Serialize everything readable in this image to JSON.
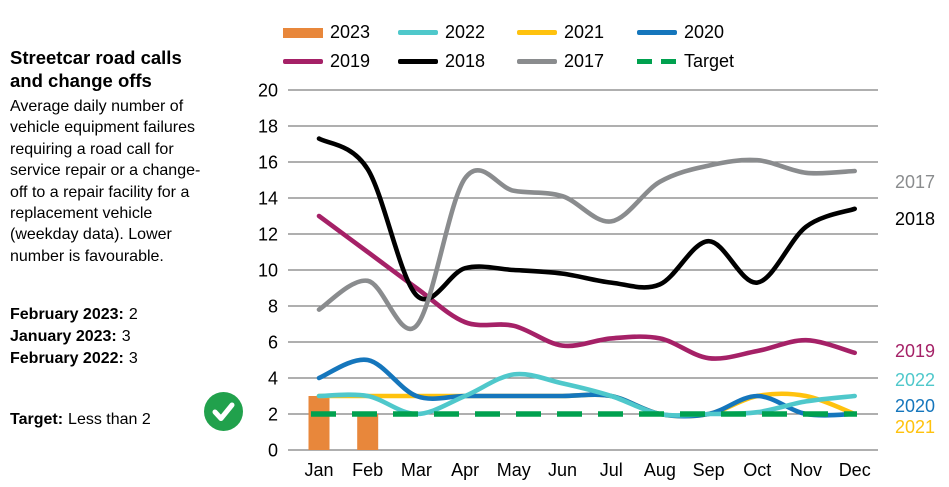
{
  "panel": {
    "title": "Streetcar road calls\nand change offs",
    "description": "Average daily number of\nvehicle equipment failures\nrequiring a road call for\nservice repair or a change-\noff to a repair facility for a\nreplacement vehicle\n(weekday data). Lower\nnumber is favourable."
  },
  "stats": [
    {
      "label": "February 2023:",
      "value": "2"
    },
    {
      "label": "January 2023:",
      "value": "3"
    },
    {
      "label": "February 2022:",
      "value": "3"
    }
  ],
  "target": {
    "label": "Target:",
    "value": "Less than 2",
    "status_icon": "check-circle-icon",
    "status_color": "#21A14C"
  },
  "legend": {
    "items": [
      {
        "label": "2023",
        "color": "#E8873B",
        "swatch": "bar"
      },
      {
        "label": "2022",
        "color": "#4FC8CB",
        "swatch": "line"
      },
      {
        "label": "2021",
        "color": "#FFC20E",
        "swatch": "line"
      },
      {
        "label": "2020",
        "color": "#1576BC",
        "swatch": "line"
      },
      {
        "label": "2019",
        "color": "#A52167",
        "swatch": "line"
      },
      {
        "label": "2018",
        "color": "#000000",
        "swatch": "line"
      },
      {
        "label": "2017",
        "color": "#8A8C8E",
        "swatch": "line"
      },
      {
        "label": "Target",
        "color": "#00A14F",
        "swatch": "dash"
      }
    ]
  },
  "chart_data": {
    "type": "line",
    "title": "Streetcar road calls and change offs",
    "categories": [
      "Jan",
      "Feb",
      "Mar",
      "Apr",
      "May",
      "Jun",
      "Jul",
      "Aug",
      "Sep",
      "Oct",
      "Nov",
      "Dec"
    ],
    "y_ticks": [
      0,
      2,
      4,
      6,
      8,
      10,
      12,
      14,
      16,
      18,
      20
    ],
    "ylim": [
      0,
      20
    ],
    "grid": true,
    "grid_color": "#7F7F7F",
    "series": [
      {
        "name": "2023",
        "type": "bar",
        "color": "#E8873B",
        "values": [
          3,
          2,
          null,
          null,
          null,
          null,
          null,
          null,
          null,
          null,
          null,
          null
        ]
      },
      {
        "name": "2019",
        "type": "line",
        "color": "#A52167",
        "values": [
          13,
          11,
          9,
          7.1,
          6.9,
          5.8,
          6.2,
          6.2,
          5.1,
          5.5,
          6.1,
          5.4
        ]
      },
      {
        "name": "2018",
        "type": "line",
        "color": "#000000",
        "values": [
          17.3,
          15.6,
          8.6,
          10.1,
          10,
          9.8,
          9.3,
          9.2,
          11.6,
          9.3,
          12.4,
          13.4
        ]
      },
      {
        "name": "2017",
        "type": "line",
        "color": "#8A8C8E",
        "values": [
          7.8,
          9.4,
          6.9,
          15.1,
          14.4,
          14.1,
          12.7,
          14.9,
          15.8,
          16.1,
          15.4,
          15.5
        ]
      },
      {
        "name": "2021",
        "type": "line",
        "color": "#FFC20E",
        "values": [
          3,
          3,
          3,
          3,
          3,
          3,
          3,
          2,
          2,
          3,
          3,
          2
        ]
      },
      {
        "name": "2020",
        "type": "line",
        "color": "#1576BC",
        "values": [
          4,
          5,
          3,
          3,
          3,
          3,
          3,
          2,
          2,
          3,
          2,
          2
        ]
      },
      {
        "name": "2022",
        "type": "line",
        "color": "#4FC8CB",
        "values": [
          3,
          3,
          2,
          3,
          4.2,
          3.7,
          3,
          2,
          2,
          2.1,
          2.7,
          3
        ]
      },
      {
        "name": "Target",
        "type": "dashed",
        "color": "#00A14F",
        "values": [
          2,
          2,
          2,
          2,
          2,
          2,
          2,
          2,
          2,
          2,
          2,
          2
        ]
      }
    ],
    "right_labels": [
      {
        "label": "2017",
        "color": "#8A8C8E"
      },
      {
        "label": "2018",
        "color": "#000000"
      },
      {
        "label": "2019",
        "color": "#A52167"
      },
      {
        "label": "2022",
        "color": "#4FC8CB"
      },
      {
        "label": "2020",
        "color": "#1576BC"
      },
      {
        "label": "2021",
        "color": "#FFC20E"
      }
    ],
    "legend_position": "top"
  }
}
